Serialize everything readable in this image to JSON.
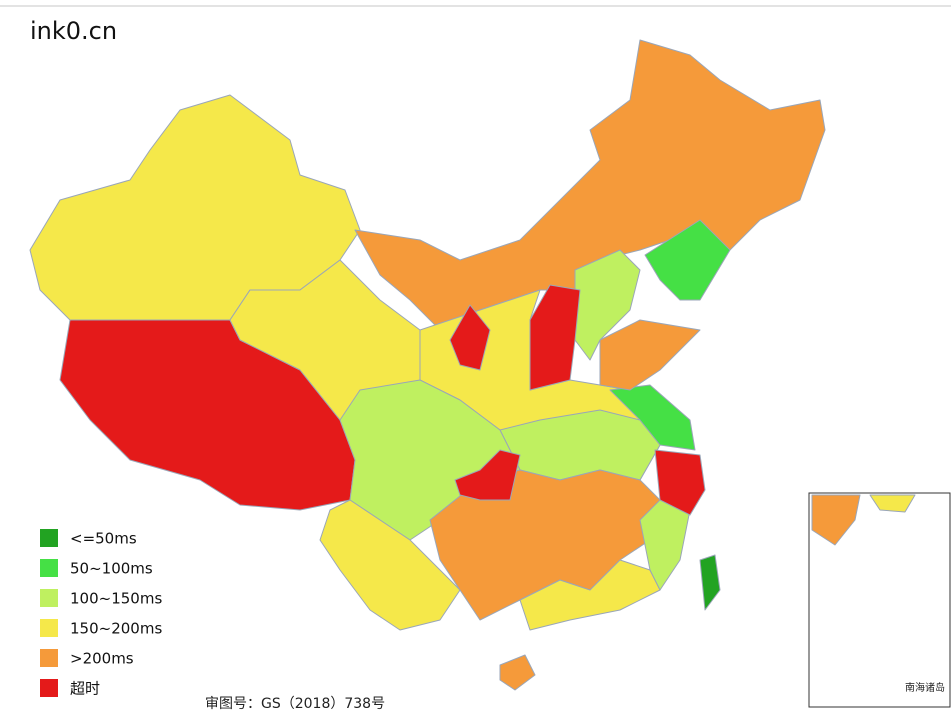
{
  "header": {
    "title": "ink0.cn"
  },
  "legend": [
    {
      "label": "<=50ms",
      "color": "#22a322"
    },
    {
      "label": "50~100ms",
      "color": "#45e045"
    },
    {
      "label": "100~150ms",
      "color": "#bff060"
    },
    {
      "label": "150~200ms",
      "color": "#f5e84a"
    },
    {
      "label": ">200ms",
      "color": "#f59a3a"
    },
    {
      "label": "超时",
      "color": "#e41a1a"
    }
  ],
  "inset": {
    "label": "南海诸岛"
  },
  "footer": "审图号：GS（2018）738号"
}
